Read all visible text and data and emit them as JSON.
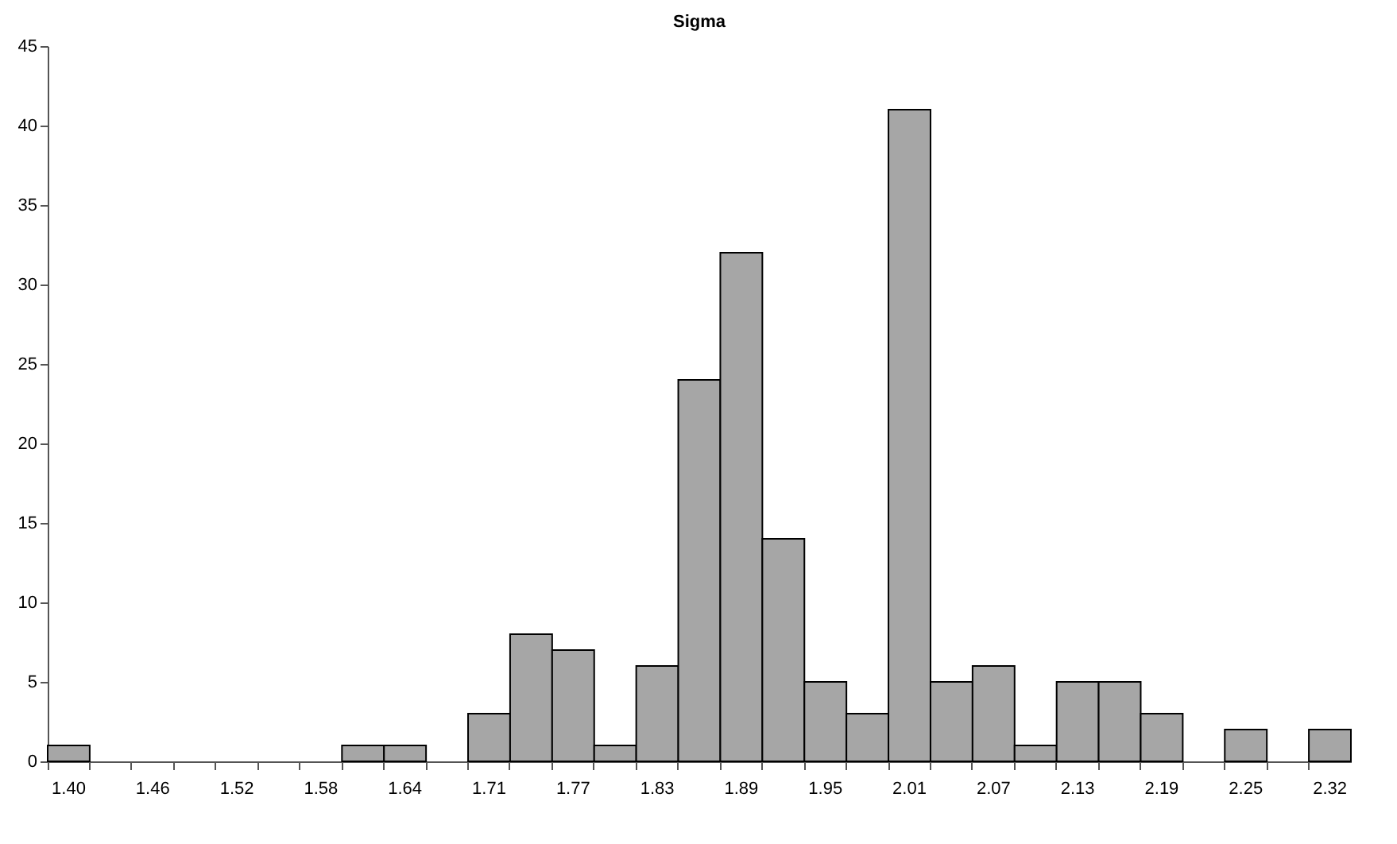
{
  "chart_data": {
    "type": "bar",
    "title": "Sigma",
    "categories": [
      "1.40",
      null,
      "1.46",
      null,
      "1.52",
      null,
      "1.58",
      null,
      "1.64",
      null,
      "1.71",
      null,
      "1.77",
      null,
      "1.83",
      null,
      "1.89",
      null,
      "1.95",
      null,
      "2.01",
      null,
      "2.07",
      null,
      "2.13",
      null,
      "2.19",
      null,
      "2.25",
      null,
      "2.32"
    ],
    "values": [
      1,
      0,
      0,
      0,
      0,
      0,
      0,
      1,
      1,
      0,
      3,
      8,
      7,
      1,
      6,
      24,
      32,
      14,
      5,
      3,
      41,
      5,
      6,
      1,
      5,
      5,
      3,
      0,
      2,
      0,
      2
    ],
    "color": "#a6a6a6",
    "ylim": [
      0,
      45
    ],
    "yticks": [
      0,
      5,
      10,
      15,
      20,
      25,
      30,
      35,
      40,
      45
    ],
    "grid": false
  }
}
